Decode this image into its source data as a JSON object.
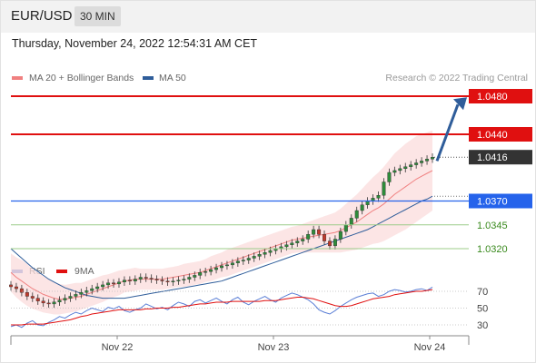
{
  "header": {
    "pair": "EUR/USD",
    "timeframe": "30 MIN"
  },
  "timestamp": "Thursday, November 24, 2022 12:54:31 AM CET",
  "legend": [
    {
      "label": "MA 20 + Bollinger Bands",
      "color": "#f08080"
    },
    {
      "label": "MA 50",
      "color": "#2f5d9a"
    }
  ],
  "credit": "Research © 2022 Trading Central",
  "chart_data": {
    "type": "line",
    "price_levels": [
      {
        "value": 1.048,
        "label": "1.0480",
        "kind": "resistance",
        "color": "#e01010"
      },
      {
        "value": 1.044,
        "label": "1.0440",
        "kind": "resistance",
        "color": "#e01010"
      },
      {
        "value": 1.0416,
        "label": "1.0416",
        "kind": "last-price",
        "color": "#333333"
      },
      {
        "value": 1.037,
        "label": "1.0370",
        "kind": "pivot",
        "color": "#2563eb"
      },
      {
        "value": 1.0345,
        "label": "1.0345",
        "kind": "support",
        "color": "#3a8a1e"
      },
      {
        "value": 1.032,
        "label": "1.0320",
        "kind": "support",
        "color": "#3a8a1e"
      }
    ],
    "x_ticks": [
      "Nov 22",
      "Nov 23",
      "Nov 24"
    ],
    "price_series": {
      "name": "EUR/USD",
      "close": [
        1.028,
        1.0278,
        1.0274,
        1.027,
        1.0268,
        1.0265,
        1.0263,
        1.0262,
        1.0264,
        1.0266,
        1.0268,
        1.027,
        1.0272,
        1.0274,
        1.0276,
        1.0278,
        1.028,
        1.0282,
        1.0284,
        1.0283,
        1.0285,
        1.0287,
        1.0286,
        1.0288,
        1.029,
        1.0289,
        1.0288,
        1.0287,
        1.0286,
        1.0285,
        1.0286,
        1.0287,
        1.0288,
        1.029,
        1.0292,
        1.0295,
        1.0296,
        1.0298,
        1.03,
        1.0302,
        1.0303,
        1.0305,
        1.0307,
        1.0308,
        1.031,
        1.0312,
        1.0314,
        1.0316,
        1.0318,
        1.032,
        1.0322,
        1.0324,
        1.0326,
        1.0328,
        1.033,
        1.0335,
        1.034,
        1.0335,
        1.0328,
        1.0323,
        1.033,
        1.0338,
        1.0345,
        1.0352,
        1.036,
        1.0366,
        1.037,
        1.0373,
        1.0376,
        1.039,
        1.04,
        1.0402,
        1.0404,
        1.0406,
        1.0408,
        1.041,
        1.0412,
        1.0414,
        1.0416
      ]
    },
    "ma20_bollinger": {
      "name": "MA 20 + Bollinger Bands",
      "mid": [
        1.0295,
        1.029,
        1.0286,
        1.0282,
        1.0278,
        1.0275,
        1.0272,
        1.027,
        1.0268,
        1.0267,
        1.0267,
        1.0268,
        1.0269,
        1.027,
        1.0272,
        1.0274,
        1.0276,
        1.0278,
        1.028,
        1.0282,
        1.0284,
        1.0286,
        1.0287,
        1.0288,
        1.0288,
        1.0288,
        1.0288,
        1.0288,
        1.0288,
        1.0289,
        1.029,
        1.0291,
        1.0292,
        1.0293,
        1.0294,
        1.0295,
        1.0297,
        1.0299,
        1.0301,
        1.0303,
        1.0305,
        1.0307,
        1.0309,
        1.0311,
        1.0313,
        1.0315,
        1.0317,
        1.0319,
        1.0321,
        1.0323,
        1.0325,
        1.0327,
        1.0329,
        1.033,
        1.0331,
        1.0332,
        1.0333,
        1.0334,
        1.0335,
        1.0336,
        1.0337,
        1.0339,
        1.0342,
        1.0345,
        1.0348,
        1.0352,
        1.0356,
        1.036,
        1.0363,
        1.0367,
        1.0372,
        1.0377,
        1.0381,
        1.0385,
        1.0389,
        1.0393,
        1.0396,
        1.0399,
        1.0402
      ],
      "width": [
        0.002,
        0.0021,
        0.0022,
        0.0022,
        0.0021,
        0.002,
        0.0019,
        0.0018,
        0.0017,
        0.0016,
        0.0015,
        0.0015,
        0.0015,
        0.0014,
        0.0014,
        0.0014,
        0.0014,
        0.0014,
        0.0013,
        0.0013,
        0.0013,
        0.0012,
        0.0012,
        0.0012,
        0.0011,
        0.0011,
        0.0011,
        0.0011,
        0.0011,
        0.0011,
        0.0011,
        0.0011,
        0.0012,
        0.0012,
        0.0012,
        0.0012,
        0.0012,
        0.0013,
        0.0013,
        0.0013,
        0.0014,
        0.0014,
        0.0014,
        0.0014,
        0.0014,
        0.0014,
        0.0014,
        0.0014,
        0.0014,
        0.0014,
        0.0014,
        0.0014,
        0.0014,
        0.0014,
        0.0015,
        0.0016,
        0.0017,
        0.0018,
        0.0019,
        0.002,
        0.0021,
        0.0023,
        0.0025,
        0.0027,
        0.0029,
        0.0031,
        0.0033,
        0.0035,
        0.0037,
        0.0039,
        0.0041,
        0.0043,
        0.0044,
        0.0045,
        0.0045,
        0.0045,
        0.0044,
        0.0043,
        0.0042
      ]
    },
    "ma50": {
      "name": "MA 50",
      "values": [
        1.032,
        1.0315,
        1.031,
        1.0305,
        1.03,
        1.0296,
        1.0292,
        1.0288,
        1.0285,
        1.0282,
        1.0279,
        1.0277,
        1.0275,
        1.0273,
        1.0271,
        1.027,
        1.0269,
        1.0268,
        1.0268,
        1.0268,
        1.0268,
        1.0268,
        1.0269,
        1.027,
        1.0271,
        1.0272,
        1.0273,
        1.0274,
        1.0275,
        1.0276,
        1.0277,
        1.0278,
        1.0279,
        1.028,
        1.0281,
        1.0282,
        1.0283,
        1.0284,
        1.0285,
        1.0286,
        1.0288,
        1.029,
        1.0292,
        1.0294,
        1.0296,
        1.0298,
        1.03,
        1.0302,
        1.0304,
        1.0306,
        1.0308,
        1.031,
        1.0312,
        1.0314,
        1.0316,
        1.0318,
        1.032,
        1.0322,
        1.0324,
        1.0326,
        1.0328,
        1.033,
        1.0332,
        1.0334,
        1.0336,
        1.0338,
        1.034,
        1.0343,
        1.0346,
        1.0349,
        1.0352,
        1.0355,
        1.0358,
        1.0361,
        1.0364,
        1.0367,
        1.037,
        1.0372,
        1.0375
      ]
    },
    "rsi": {
      "legend": [
        {
          "label": "RSI",
          "color": "#5b7fd6"
        },
        {
          "label": "9MA",
          "color": "#e01010"
        }
      ],
      "y_ticks": [
        30,
        50,
        70
      ],
      "rsi_values": [
        28,
        30,
        27,
        32,
        35,
        30,
        29,
        33,
        36,
        40,
        38,
        42,
        45,
        43,
        47,
        50,
        48,
        46,
        51,
        49,
        52,
        47,
        45,
        48,
        50,
        55,
        52,
        49,
        51,
        48,
        53,
        57,
        55,
        52,
        58,
        60,
        56,
        59,
        62,
        58,
        55,
        60,
        63,
        57,
        54,
        58,
        61,
        64,
        60,
        57,
        62,
        65,
        68,
        66,
        63,
        60,
        55,
        48,
        45,
        43,
        47,
        52,
        56,
        60,
        63,
        65,
        67,
        68,
        64,
        66,
        70,
        72,
        71,
        69,
        70,
        72,
        73,
        71,
        75
      ],
      "ma9_values": [
        30,
        30,
        30,
        31,
        31,
        31,
        31,
        32,
        33,
        34,
        35,
        36,
        38,
        40,
        41,
        43,
        44,
        45,
        46,
        47,
        48,
        48,
        48,
        48,
        48,
        49,
        49,
        50,
        50,
        50,
        51,
        51,
        52,
        53,
        54,
        55,
        55,
        56,
        57,
        57,
        57,
        58,
        58,
        58,
        58,
        58,
        58,
        59,
        59,
        59,
        60,
        61,
        62,
        63,
        63,
        62,
        61,
        59,
        57,
        55,
        53,
        52,
        52,
        53,
        55,
        57,
        59,
        61,
        62,
        63,
        64,
        66,
        67,
        68,
        69,
        70,
        70,
        71,
        72
      ],
      "overbought": 70
    }
  }
}
